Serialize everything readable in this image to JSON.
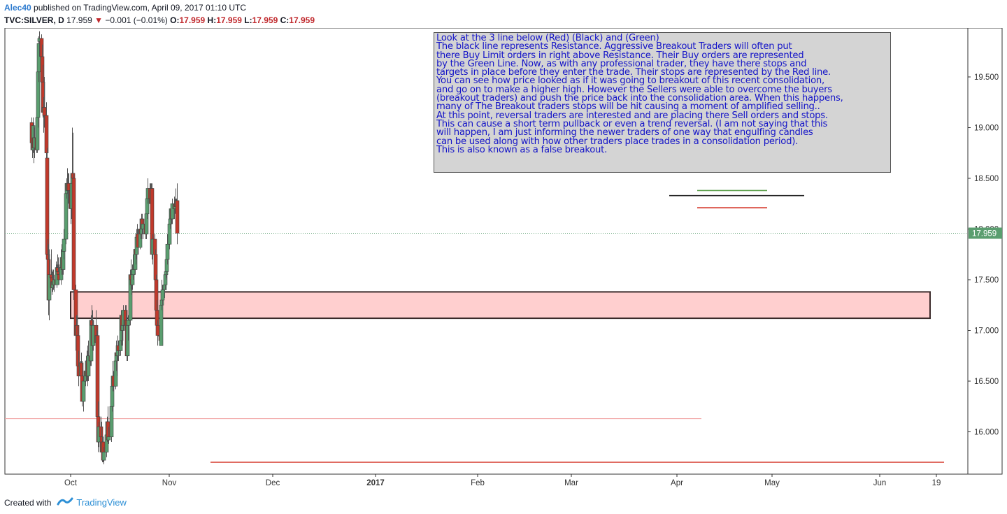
{
  "header": {
    "user": "Alec40",
    "published": "published on TradingView.com, April 09, 2017 01:10 UTC",
    "symbol": "TVC:SILVER, D",
    "last": "17.959",
    "change": "−0.001 (−0.01%)",
    "o_label": "O:",
    "o_value": "17.959",
    "h_label": "H:",
    "h_value": "17.959",
    "l_label": "L:",
    "l_value": "17.959",
    "c_label": "C:",
    "c_value": "17.959"
  },
  "annotation": {
    "lines": [
      "Look at the 3 line below (Red) (Black) and (Green)",
      "The black line represents Resistance. Aggressive Breakout Traders will often put",
      "there Buy Limit orders in right above Resistance. Their Buy orders are represented",
      "by the Green Line. Now, as with any professional trader, they have there stops and",
      "targets in place before they enter the trade. Their stops are represented by the Red line.",
      "You can see how price looked as if it was going to breakout of this recent consolidation,",
      "and go on to make a higher high. However the Sellers were able to overcome the buyers",
      "(breakout traders) and push the price back into the consolidation area. When this happens,",
      "many of The Breakout traders stops will be hit causing a moment of amplified selling..",
      "At this point, reversal traders are interested and are placing there Sell orders and stops.",
      "This can cause a short term pullback or even a trend reversal. (I am not saying that this",
      "will happen, I am just informing the newer traders of one way that engulfing candles",
      "can be used along with how other traders place trades in a consolidation period).",
      "This is also known as a false breakout."
    ]
  },
  "footer": {
    "created_with": "Created with",
    "brand": "TradingView"
  },
  "colors": {
    "up": "#5a9e6f",
    "down": "#c0392b",
    "zone_fill": "#ffcfcf",
    "price_tag": "#5a9e6f",
    "note_text": "#1515c8",
    "note_bg": "#d4d4d4"
  },
  "chart_data": {
    "type": "candlestick",
    "symbol": "TVC:SILVER",
    "interval": "D",
    "ylim": [
      15.67,
      20.0
    ],
    "y_ticks": [
      "19.500",
      "19.000",
      "18.500",
      "18.000",
      "17.500",
      "17.000",
      "16.500",
      "16.000"
    ],
    "x_ticks": [
      {
        "label": "Oct",
        "date": "2016-10-01"
      },
      {
        "label": "Nov",
        "date": "2016-11-01"
      },
      {
        "label": "Dec",
        "date": "2016-12-01"
      },
      {
        "label": "2017",
        "date": "2017-01-01",
        "bold": true
      },
      {
        "label": "Feb",
        "date": "2017-02-01"
      },
      {
        "label": "Mar",
        "date": "2017-03-01"
      },
      {
        "label": "Apr",
        "date": "2017-04-01"
      },
      {
        "label": "May",
        "date": "2017-05-01"
      },
      {
        "label": "Jun",
        "date": "2017-06-01"
      },
      {
        "label": "19",
        "date": "2017-06-19"
      }
    ],
    "last_price": "17.959",
    "candles": [
      [
        "2016-09-12",
        19.05,
        19.1,
        18.8,
        18.85
      ],
      [
        "2016-09-13",
        18.85,
        18.92,
        18.7,
        18.78
      ],
      [
        "2016-09-14",
        18.78,
        19.1,
        18.75,
        19.02
      ],
      [
        "2016-09-15",
        18.9,
        19.05,
        18.65,
        18.8
      ],
      [
        "2016-09-16",
        18.8,
        19.0,
        18.7,
        18.9
      ],
      [
        "2016-09-19",
        18.9,
        19.1,
        18.75,
        18.78
      ],
      [
        "2016-09-20",
        18.78,
        19.15,
        18.75,
        19.1
      ],
      [
        "2016-09-21",
        19.1,
        19.6,
        19.0,
        19.55
      ],
      [
        "2016-09-22",
        19.55,
        19.9,
        19.45,
        19.83
      ],
      [
        "2016-09-23",
        19.85,
        19.95,
        19.7,
        19.88
      ],
      [
        "2016-09-26",
        19.88,
        19.92,
        19.6,
        19.7
      ],
      [
        "2016-09-27",
        19.7,
        19.82,
        19.4,
        19.45
      ],
      [
        "2016-09-28",
        19.45,
        19.62,
        19.1,
        19.15
      ],
      [
        "2016-09-29",
        19.15,
        19.3,
        18.95,
        19.2
      ],
      [
        "2016-09-30",
        19.2,
        19.5,
        19.0,
        19.12
      ],
      [
        "2016-10-03",
        19.12,
        19.25,
        18.7,
        18.75
      ],
      [
        "2016-10-04",
        18.7,
        18.8,
        17.7,
        17.75
      ],
      [
        "2016-10-05",
        17.75,
        17.9,
        17.6,
        17.7
      ],
      [
        "2016-10-06",
        17.7,
        17.85,
        17.15,
        17.3
      ],
      [
        "2016-10-07",
        17.3,
        17.8,
        17.1,
        17.55
      ],
      [
        "2016-10-10",
        17.55,
        17.8,
        17.45,
        17.52
      ],
      [
        "2016-10-11",
        17.52,
        17.6,
        17.35,
        17.42
      ],
      [
        "2016-10-12",
        17.42,
        17.58,
        17.38,
        17.48
      ],
      [
        "2016-10-13",
        17.48,
        17.6,
        17.4,
        17.45
      ],
      [
        "2016-10-14",
        17.45,
        17.55,
        17.38,
        17.5
      ],
      [
        "2016-10-17",
        17.5,
        17.68,
        17.45,
        17.45
      ],
      [
        "2016-10-18",
        17.45,
        17.65,
        17.42,
        17.62
      ],
      [
        "2016-10-19",
        17.62,
        17.75,
        17.55,
        17.58
      ],
      [
        "2016-10-20",
        17.58,
        17.72,
        17.5,
        17.55
      ],
      [
        "2016-10-21",
        17.55,
        17.65,
        17.45,
        17.5
      ],
      [
        "2016-10-24",
        17.5,
        17.8,
        17.45,
        17.62
      ],
      [
        "2016-10-25",
        17.62,
        17.85,
        17.55,
        17.72
      ],
      [
        "2016-10-26",
        17.72,
        17.8,
        17.55,
        17.6
      ],
      [
        "2016-10-27",
        17.6,
        17.82,
        17.55,
        17.78
      ],
      [
        "2016-10-28",
        17.78,
        18.0,
        17.7,
        17.9
      ],
      [
        "2016-10-31",
        17.9,
        18.4,
        17.85,
        18.35
      ],
      [
        "2016-11-01",
        18.35,
        18.5,
        18.3,
        18.45
      ],
      [
        "2016-11-02",
        18.45,
        18.6,
        18.35,
        18.38
      ],
      [
        "2016-11-03",
        18.38,
        18.55,
        18.25,
        18.45
      ],
      [
        "2016-11-04",
        18.45,
        18.55,
        18.2,
        18.38
      ],
      [
        "2016-11-07",
        18.38,
        18.45,
        18.05,
        18.2
      ],
      [
        "2016-11-08",
        18.2,
        18.5,
        18.1,
        18.45
      ],
      [
        "2016-11-09",
        18.45,
        19.0,
        18.3,
        18.55
      ],
      [
        "2016-11-10",
        18.55,
        18.95,
        18.45,
        18.5
      ],
      [
        "2016-11-11",
        18.5,
        18.55,
        17.3,
        17.4
      ],
      [
        "2016-11-14",
        17.4,
        17.45,
        16.8,
        16.95
      ],
      [
        "2016-11-15",
        16.95,
        17.15,
        16.65,
        17.05
      ],
      [
        "2016-11-16",
        17.05,
        17.15,
        16.9,
        16.95
      ],
      [
        "2016-11-17",
        16.95,
        17.05,
        16.6,
        16.65
      ],
      [
        "2016-11-18",
        16.65,
        16.8,
        16.45,
        16.55
      ],
      [
        "2016-11-21",
        16.55,
        16.7,
        16.5,
        16.68
      ],
      [
        "2016-11-22",
        16.68,
        16.78,
        16.5,
        16.55
      ],
      [
        "2016-11-23",
        16.55,
        16.7,
        16.25,
        16.3
      ],
      [
        "2016-11-25",
        16.3,
        16.55,
        16.2,
        16.5
      ],
      [
        "2016-11-28",
        16.5,
        16.7,
        16.45,
        16.6
      ],
      [
        "2016-11-29",
        16.6,
        16.75,
        16.5,
        16.55
      ],
      [
        "2016-11-30",
        16.55,
        16.8,
        16.5,
        16.7
      ],
      [
        "2016-12-01",
        16.7,
        16.85,
        16.45,
        16.55
      ],
      [
        "2016-12-02",
        16.55,
        16.9,
        16.5,
        16.75
      ],
      [
        "2016-12-05",
        16.75,
        17.0,
        16.65,
        16.7
      ],
      [
        "2016-12-06",
        16.7,
        17.15,
        16.65,
        17.1
      ],
      [
        "2016-12-07",
        17.1,
        17.25,
        16.95,
        17.05
      ],
      [
        "2016-12-08",
        17.05,
        17.2,
        16.8,
        16.85
      ],
      [
        "2016-12-09",
        16.85,
        17.1,
        16.8,
        17.05
      ],
      [
        "2016-12-12",
        17.05,
        17.2,
        16.85,
        16.88
      ],
      [
        "2016-12-13",
        16.88,
        17.05,
        16.85,
        16.95
      ],
      [
        "2016-12-14",
        16.95,
        17.0,
        16.1,
        16.15
      ],
      [
        "2016-12-15",
        16.15,
        16.3,
        15.8,
        15.9
      ],
      [
        "2016-12-16",
        15.9,
        16.1,
        15.85,
        16.05
      ],
      [
        "2016-12-19",
        16.05,
        16.15,
        15.85,
        15.95
      ],
      [
        "2016-12-20",
        15.95,
        16.1,
        15.75,
        15.8
      ],
      [
        "2016-12-21",
        15.8,
        15.95,
        15.7,
        15.9
      ],
      [
        "2016-12-22",
        15.9,
        15.95,
        15.7,
        15.72
      ],
      [
        "2016-12-23",
        15.72,
        15.85,
        15.68,
        15.8
      ],
      [
        "2016-12-27",
        15.8,
        16.05,
        15.75,
        15.97
      ],
      [
        "2016-12-28",
        15.97,
        16.15,
        15.9,
        16.1
      ],
      [
        "2016-12-29",
        16.1,
        16.25,
        15.88,
        15.92
      ],
      [
        "2016-12-30",
        15.92,
        16.05,
        15.88,
        15.95
      ],
      [
        "2017-01-03",
        15.95,
        16.3,
        15.9,
        16.25
      ],
      [
        "2017-01-04",
        16.25,
        16.55,
        16.2,
        16.45
      ],
      [
        "2017-01-05",
        16.45,
        16.7,
        16.4,
        16.55
      ],
      [
        "2017-01-06",
        16.55,
        16.6,
        16.4,
        16.45
      ],
      [
        "2017-01-09",
        16.45,
        16.75,
        16.42,
        16.7
      ],
      [
        "2017-01-10",
        16.7,
        16.9,
        16.6,
        16.78
      ],
      [
        "2017-01-11",
        16.78,
        16.85,
        16.55,
        16.75
      ],
      [
        "2017-01-12",
        16.75,
        16.95,
        16.7,
        16.85
      ],
      [
        "2017-01-13",
        16.85,
        16.9,
        16.7,
        16.8
      ],
      [
        "2017-01-16",
        16.8,
        16.95,
        16.75,
        16.9
      ],
      [
        "2017-01-17",
        16.9,
        17.2,
        16.85,
        17.15
      ],
      [
        "2017-01-18",
        17.15,
        17.2,
        16.9,
        17.0
      ],
      [
        "2017-01-19",
        17.0,
        17.15,
        16.85,
        17.05
      ],
      [
        "2017-01-20",
        17.05,
        17.25,
        17.0,
        17.2
      ],
      [
        "2017-01-23",
        17.2,
        17.25,
        17.0,
        17.05
      ],
      [
        "2017-01-24",
        17.05,
        17.25,
        16.95,
        17.1
      ],
      [
        "2017-01-25",
        17.1,
        17.15,
        16.7,
        16.75
      ],
      [
        "2017-01-26",
        16.75,
        17.1,
        16.7,
        17.05
      ],
      [
        "2017-01-27",
        17.05,
        17.15,
        16.9,
        17.1
      ],
      [
        "2017-01-30",
        17.1,
        17.6,
        17.05,
        17.55
      ],
      [
        "2017-01-31",
        17.55,
        17.7,
        17.4,
        17.5
      ],
      [
        "2017-02-01",
        17.5,
        17.6,
        17.35,
        17.45
      ],
      [
        "2017-02-02",
        17.45,
        17.65,
        17.4,
        17.55
      ],
      [
        "2017-02-03",
        17.55,
        17.75,
        17.5,
        17.6
      ],
      [
        "2017-02-06",
        17.6,
        17.85,
        17.55,
        17.8
      ],
      [
        "2017-02-07",
        17.8,
        17.95,
        17.65,
        17.75
      ],
      [
        "2017-02-08",
        17.75,
        18.0,
        17.7,
        17.92
      ],
      [
        "2017-02-09",
        17.92,
        18.05,
        17.85,
        17.95
      ],
      [
        "2017-02-10",
        17.95,
        18.0,
        17.75,
        17.82
      ],
      [
        "2017-02-13",
        17.82,
        18.05,
        17.8,
        18.0
      ],
      [
        "2017-02-14",
        18.0,
        18.1,
        17.9,
        17.95
      ],
      [
        "2017-02-15",
        17.95,
        18.15,
        17.9,
        18.1
      ],
      [
        "2017-02-16",
        18.1,
        18.15,
        17.95,
        18.0
      ],
      [
        "2017-02-17",
        18.0,
        18.1,
        17.9,
        18.05
      ],
      [
        "2017-02-21",
        18.05,
        18.1,
        17.9,
        17.95
      ],
      [
        "2017-02-22",
        17.95,
        18.2,
        17.9,
        18.15
      ],
      [
        "2017-02-23",
        18.15,
        18.4,
        18.1,
        18.3
      ],
      [
        "2017-02-24",
        18.3,
        18.5,
        18.25,
        18.4
      ],
      [
        "2017-02-27",
        18.4,
        18.45,
        18.25,
        18.3
      ],
      [
        "2017-02-28",
        18.3,
        18.45,
        18.2,
        18.25
      ],
      [
        "2017-03-01",
        18.25,
        18.45,
        18.2,
        18.4
      ],
      [
        "2017-03-02",
        18.4,
        18.45,
        17.7,
        17.75
      ],
      [
        "2017-03-03",
        17.75,
        17.95,
        17.65,
        17.9
      ],
      [
        "2017-03-06",
        17.9,
        17.95,
        17.65,
        17.75
      ],
      [
        "2017-03-07",
        17.75,
        17.8,
        17.45,
        17.5
      ],
      [
        "2017-03-08",
        17.5,
        17.55,
        17.15,
        17.2
      ],
      [
        "2017-03-09",
        17.2,
        17.3,
        17.0,
        17.05
      ],
      [
        "2017-03-10",
        17.05,
        17.1,
        16.85,
        16.95
      ],
      [
        "2017-03-13",
        16.95,
        17.05,
        16.85,
        16.95
      ],
      [
        "2017-03-14",
        16.95,
        17.1,
        16.9,
        16.9
      ],
      [
        "2017-03-15",
        16.85,
        17.3,
        16.85,
        17.25
      ],
      [
        "2017-03-16",
        17.25,
        17.5,
        17.2,
        17.3
      ],
      [
        "2017-03-17",
        17.3,
        17.45,
        17.25,
        17.4
      ],
      [
        "2017-03-20",
        17.4,
        17.5,
        17.32,
        17.45
      ],
      [
        "2017-03-21",
        17.45,
        17.6,
        17.4,
        17.55
      ],
      [
        "2017-03-22",
        17.55,
        17.65,
        17.5,
        17.58
      ],
      [
        "2017-03-23",
        17.58,
        17.75,
        17.52,
        17.7
      ],
      [
        "2017-03-24",
        17.7,
        17.95,
        17.65,
        17.85
      ],
      [
        "2017-03-27",
        17.85,
        18.15,
        17.8,
        18.05
      ],
      [
        "2017-03-28",
        18.05,
        18.12,
        18.0,
        18.1
      ],
      [
        "2017-03-29",
        18.1,
        18.25,
        18.05,
        18.2
      ],
      [
        "2017-03-30",
        18.2,
        18.25,
        18.05,
        18.1
      ],
      [
        "2017-03-31",
        18.1,
        18.3,
        18.05,
        18.25
      ],
      [
        "2017-04-03",
        18.25,
        18.32,
        18.1,
        18.2
      ],
      [
        "2017-04-04",
        18.2,
        18.3,
        18.15,
        18.25
      ],
      [
        "2017-04-05",
        18.25,
        18.4,
        18.15,
        18.22
      ],
      [
        "2017-04-06",
        18.22,
        18.3,
        18.12,
        18.28
      ],
      [
        "2017-04-07",
        18.28,
        18.45,
        17.85,
        17.959
      ]
    ],
    "consolidation_zone": {
      "from": "2016-10-04",
      "to": "2017-06-18",
      "top": 17.38,
      "bottom": 17.12
    },
    "lines": [
      {
        "name": "green",
        "color": "#5a9e4a",
        "y": 18.38,
        "from": "2017-04-07",
        "to": "2017-05-01"
      },
      {
        "name": "black",
        "color": "#222222",
        "y": 18.33,
        "from": "2017-03-31",
        "to": "2017-05-05"
      },
      {
        "name": "red",
        "color": "#d63b2f",
        "y": 18.21,
        "from": "2017-04-07",
        "to": "2017-05-01"
      },
      {
        "name": "support",
        "color": "#d63b2f",
        "y": 15.7,
        "from": "2016-11-14",
        "to": "2017-06-18"
      },
      {
        "name": "faint",
        "color": "#f0a0a0",
        "y": 16.13,
        "from": "2016-08-20",
        "to": "2017-04-10"
      }
    ]
  }
}
